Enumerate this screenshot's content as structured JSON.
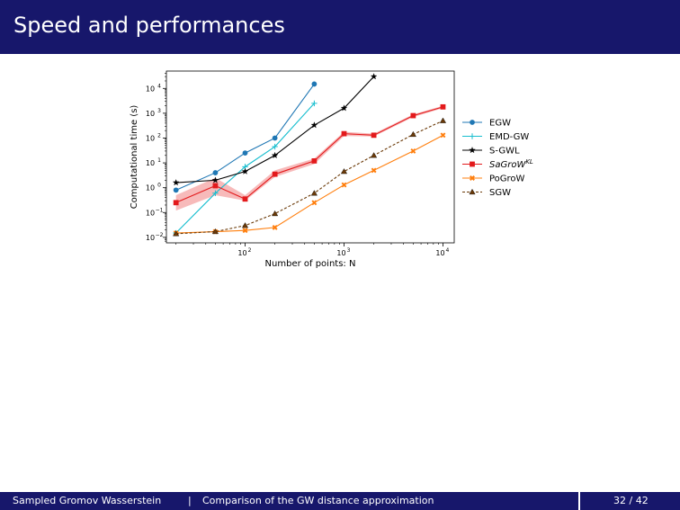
{
  "slide": {
    "title": "Speed and performances",
    "footer_left_a": "Sampled Gromov Wasserstein",
    "footer_sep": "|",
    "footer_left_b": "Comparison of the GW distance approximation",
    "page_number": "32 / 42"
  },
  "chart_data": {
    "type": "line",
    "xlabel": "Number of points: N",
    "ylabel": "Computational time (s)",
    "xscale": "log",
    "yscale": "log",
    "xlim": [
      16,
      13000
    ],
    "ylim": [
      0.006,
      50000
    ],
    "xticks": [
      {
        "value": 100,
        "label_base": "10",
        "label_exp": "2"
      },
      {
        "value": 1000,
        "label_base": "10",
        "label_exp": "3"
      },
      {
        "value": 10000,
        "label_base": "10",
        "label_exp": "4"
      }
    ],
    "yticks": [
      {
        "value": 0.01,
        "label_base": "10",
        "label_exp": "−2"
      },
      {
        "value": 0.1,
        "label_base": "10",
        "label_exp": "−1"
      },
      {
        "value": 1,
        "label_base": "10",
        "label_exp": "0"
      },
      {
        "value": 10,
        "label_base": "10",
        "label_exp": "1"
      },
      {
        "value": 100,
        "label_base": "10",
        "label_exp": "2"
      },
      {
        "value": 1000,
        "label_base": "10",
        "label_exp": "3"
      },
      {
        "value": 10000,
        "label_base": "10",
        "label_exp": "4"
      }
    ],
    "legend_position": "right",
    "series": [
      {
        "name": "EGW",
        "color": "#1f77b4",
        "marker": "circle",
        "dash": "solid",
        "x": [
          20,
          50,
          100,
          200,
          500
        ],
        "y": [
          0.8,
          4,
          25,
          100,
          15000
        ],
        "band_low": null,
        "band_high": null
      },
      {
        "name": "EMD-GW",
        "color": "#17becf",
        "marker": "plus",
        "dash": "solid",
        "x": [
          20,
          50,
          100,
          200,
          500
        ],
        "y": [
          0.015,
          0.6,
          7,
          45,
          2500
        ],
        "band_low": null,
        "band_high": null
      },
      {
        "name": "S-GWL",
        "color": "#000000",
        "marker": "star",
        "dash": "solid",
        "x": [
          20,
          50,
          100,
          200,
          500,
          1000,
          2000
        ],
        "y": [
          1.6,
          2,
          4.5,
          20,
          330,
          1600,
          30000
        ],
        "band_low": null,
        "band_high": null
      },
      {
        "name": "SaGroW",
        "name_sup": "KL",
        "italic": true,
        "color": "#e31a1c",
        "marker": "square",
        "dash": "solid",
        "x": [
          20,
          50,
          100,
          200,
          500,
          1000,
          2000,
          5000,
          10000
        ],
        "y": [
          0.25,
          1.2,
          0.35,
          3.5,
          12,
          150,
          130,
          800,
          1800
        ],
        "band_low": [
          0.12,
          0.5,
          0.3,
          2.7,
          9,
          120,
          115,
          700,
          1600
        ],
        "band_high": [
          0.5,
          2.5,
          0.5,
          5,
          15,
          180,
          150,
          900,
          2000
        ]
      },
      {
        "name": "PoGroW",
        "color": "#ff7f0e",
        "marker": "x",
        "dash": "solid",
        "x": [
          20,
          50,
          100,
          200,
          500,
          1000,
          2000,
          5000,
          10000
        ],
        "y": [
          0.015,
          0.017,
          0.019,
          0.025,
          0.25,
          1.3,
          5,
          30,
          130
        ],
        "band_low": null,
        "band_high": null
      },
      {
        "name": "SGW",
        "color": "#6b3a08",
        "marker": "triangle",
        "dash": "dashed",
        "x": [
          20,
          50,
          100,
          200,
          500,
          1000,
          2000,
          5000,
          10000
        ],
        "y": [
          0.014,
          0.017,
          0.03,
          0.09,
          0.6,
          4.5,
          20,
          140,
          500
        ],
        "band_low": null,
        "band_high": null
      }
    ]
  }
}
